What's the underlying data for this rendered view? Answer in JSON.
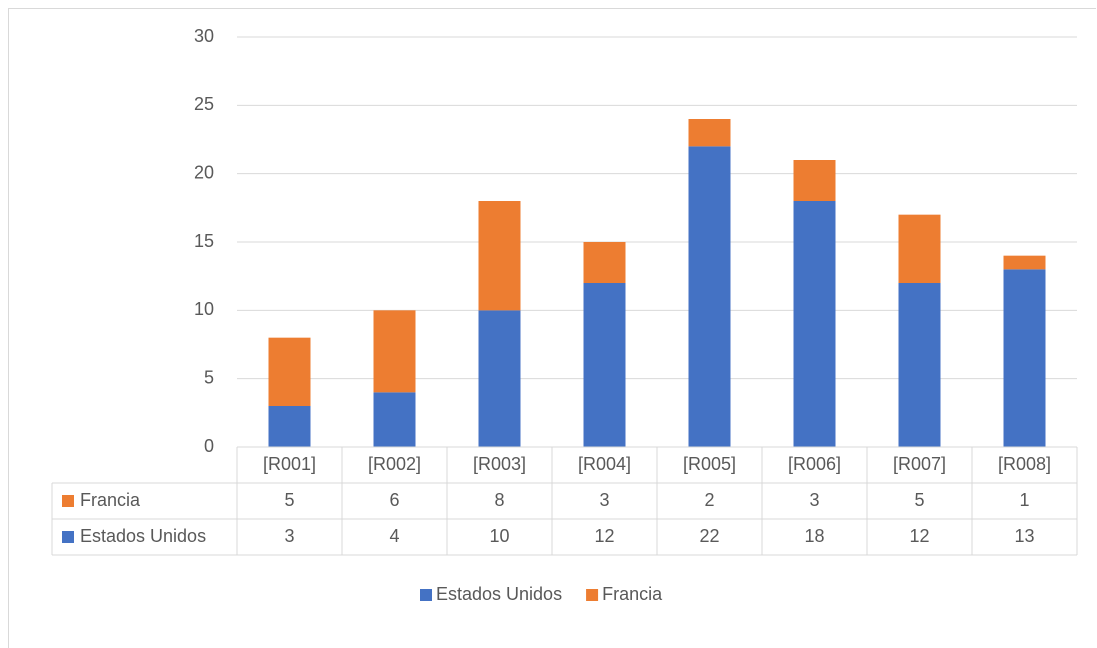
{
  "chart_data": {
    "type": "bar",
    "stacked": true,
    "categories": [
      "[R001]",
      "[R002]",
      "[R003]",
      "[R004]",
      "[R005]",
      "[R006]",
      "[R007]",
      "[R008]"
    ],
    "series": [
      {
        "name": "Estados Unidos",
        "color": "#4472C4",
        "values": [
          3,
          4,
          10,
          12,
          22,
          18,
          12,
          13
        ]
      },
      {
        "name": "Francia",
        "color": "#ED7D31",
        "values": [
          5,
          6,
          8,
          3,
          2,
          3,
          5,
          1
        ]
      }
    ],
    "table_rows": [
      "Francia",
      "Estados Unidos"
    ],
    "legend_order": [
      "Estados Unidos",
      "Francia"
    ],
    "y_ticks": [
      "0",
      "5",
      "10",
      "15",
      "20",
      "25",
      "30"
    ],
    "ylim": [
      0,
      30
    ],
    "grid": true,
    "data_table": true,
    "legend_position": "bottom"
  }
}
